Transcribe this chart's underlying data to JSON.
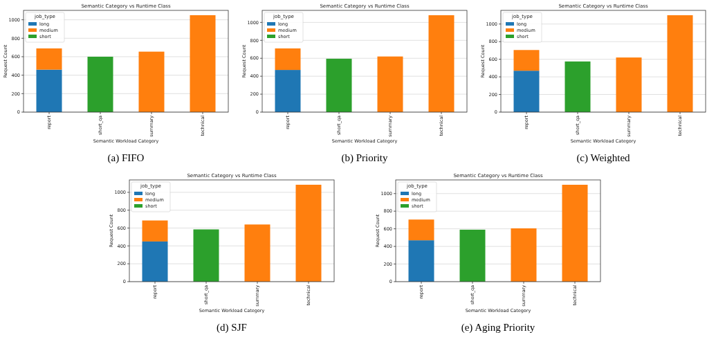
{
  "chart_data": [
    {
      "type": "bar",
      "stacked": true,
      "title": "Semantic Category vs Runtime Class",
      "xlabel": "Semantic Workload Category",
      "ylabel": "Request Count",
      "legend_title": "job_type",
      "legend": "top left",
      "grid": "y",
      "categories": [
        "report",
        "short_qa",
        "summary",
        "technical"
      ],
      "ylim": [
        0,
        1102
      ],
      "yticks": [
        0,
        200,
        400,
        600,
        800,
        1000
      ],
      "annotations": [
        "(a) FIFO"
      ],
      "series": [
        {
          "name": "long",
          "color": "#1f77b4",
          "values": [
            460,
            null,
            null,
            null
          ]
        },
        {
          "name": "medium",
          "color": "#ff7f0e",
          "values": [
            230,
            null,
            655,
            1050
          ]
        },
        {
          "name": "short",
          "color": "#2ca02c",
          "values": [
            null,
            600,
            null,
            null
          ]
        }
      ]
    },
    {
      "type": "bar",
      "stacked": true,
      "title": "Semantic Category vs Runtime Class",
      "xlabel": "Semantic Workload Category",
      "ylabel": "Request Count",
      "legend_title": "job_type",
      "legend": "top left",
      "grid": "y",
      "categories": [
        "report",
        "short_qa",
        "summary",
        "technical"
      ],
      "ylim": [
        0,
        1134
      ],
      "yticks": [
        0,
        200,
        400,
        600,
        800,
        1000
      ],
      "annotations": [
        "(b) Priority"
      ],
      "series": [
        {
          "name": "long",
          "color": "#1f77b4",
          "values": [
            470,
            null,
            null,
            null
          ]
        },
        {
          "name": "medium",
          "color": "#ff7f0e",
          "values": [
            240,
            null,
            620,
            1080
          ]
        },
        {
          "name": "short",
          "color": "#2ca02c",
          "values": [
            null,
            595,
            null,
            null
          ]
        }
      ]
    },
    {
      "type": "bar",
      "stacked": true,
      "title": "Semantic Category vs Runtime Class",
      "xlabel": "Semantic Workload Category",
      "ylabel": "Request Count",
      "legend_title": "job_type",
      "legend": "top left",
      "grid": "y",
      "categories": [
        "report",
        "short_qa",
        "summary",
        "technical"
      ],
      "ylim": [
        0,
        1155
      ],
      "yticks": [
        0,
        200,
        400,
        600,
        800,
        1000
      ],
      "annotations": [
        "(c) Weighted"
      ],
      "series": [
        {
          "name": "long",
          "color": "#1f77b4",
          "values": [
            470,
            null,
            null,
            null
          ]
        },
        {
          "name": "medium",
          "color": "#ff7f0e",
          "values": [
            235,
            null,
            620,
            1100
          ]
        },
        {
          "name": "short",
          "color": "#2ca02c",
          "values": [
            null,
            575,
            null,
            null
          ]
        }
      ]
    },
    {
      "type": "bar",
      "stacked": true,
      "title": "Semantic Category vs Runtime Class",
      "xlabel": "Semantic Workload Category",
      "ylabel": "Request Count",
      "legend_title": "job_type",
      "legend": "top left",
      "grid": "y",
      "categories": [
        "report",
        "short_qa",
        "summary",
        "technical"
      ],
      "ylim": [
        0,
        1139
      ],
      "yticks": [
        0,
        200,
        400,
        600,
        800,
        1000
      ],
      "annotations": [
        "(d) SJF"
      ],
      "series": [
        {
          "name": "long",
          "color": "#1f77b4",
          "values": [
            450,
            null,
            null,
            null
          ]
        },
        {
          "name": "medium",
          "color": "#ff7f0e",
          "values": [
            235,
            null,
            640,
            1085
          ]
        },
        {
          "name": "short",
          "color": "#2ca02c",
          "values": [
            null,
            585,
            null,
            null
          ]
        }
      ]
    },
    {
      "type": "bar",
      "stacked": true,
      "title": "Semantic Category vs Runtime Class",
      "xlabel": "Semantic Workload Category",
      "ylabel": "Request Count",
      "legend_title": "job_type",
      "legend": "top left",
      "grid": "y",
      "categories": [
        "report",
        "short_qa",
        "summary",
        "technical"
      ],
      "ylim": [
        0,
        1155
      ],
      "yticks": [
        0,
        200,
        400,
        600,
        800,
        1000
      ],
      "annotations": [
        "(e) Aging Priority"
      ],
      "series": [
        {
          "name": "long",
          "color": "#1f77b4",
          "values": [
            470,
            null,
            null,
            null
          ]
        },
        {
          "name": "medium",
          "color": "#ff7f0e",
          "values": [
            235,
            null,
            605,
            1100
          ]
        },
        {
          "name": "short",
          "color": "#2ca02c",
          "values": [
            null,
            590,
            null,
            null
          ]
        }
      ]
    }
  ]
}
